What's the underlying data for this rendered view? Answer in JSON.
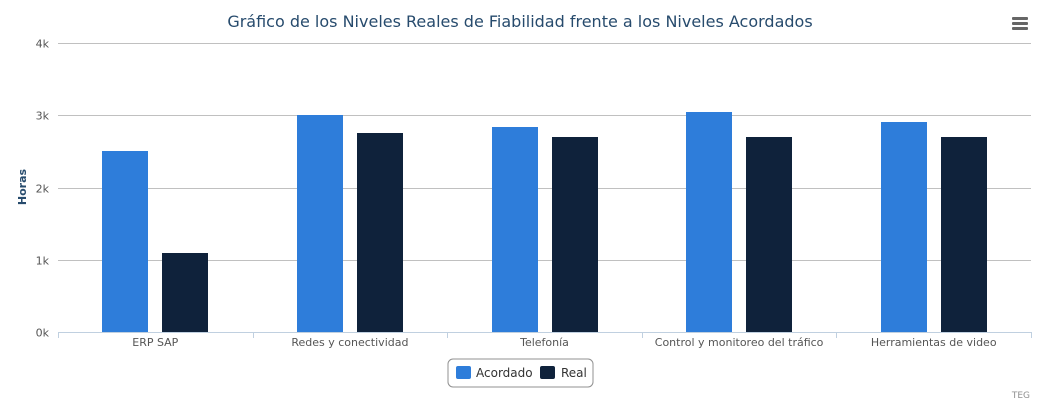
{
  "menu": {
    "icon": "hamburger-menu-icon"
  },
  "credits": "TEG",
  "colors": {
    "acordado": "#2e7dda",
    "real": "#0f223b",
    "title": "#274b6d",
    "gridline": "#c0c0c0",
    "axis_line": "#c0d0e0",
    "tick_label": "#555555",
    "menu_icon": "#666666"
  },
  "chart_data": {
    "type": "bar",
    "title": "Gráfico de los Niveles Reales de Fiabilidad frente a los Niveles Acordados",
    "xlabel": "",
    "ylabel": "Horas",
    "categories": [
      "ERP SAP",
      "Redes y conectividad",
      "Telefonía",
      "Control y monitoreo del tráfico",
      "Herramientas de video"
    ],
    "series": [
      {
        "name": "Acordado",
        "values": [
          2500,
          3000,
          2840,
          3050,
          2900
        ]
      },
      {
        "name": "Real",
        "values": [
          1100,
          2750,
          2700,
          2700,
          2700
        ]
      }
    ],
    "ylim": [
      0,
      4000
    ],
    "yticks": [
      0,
      1000,
      2000,
      3000,
      4000
    ],
    "ytick_labels": [
      "0k",
      "1k",
      "2k",
      "3k",
      "4k"
    ],
    "grid": true,
    "legend": {
      "position": "bottom-center",
      "items": [
        "Acordado",
        "Real"
      ]
    }
  }
}
